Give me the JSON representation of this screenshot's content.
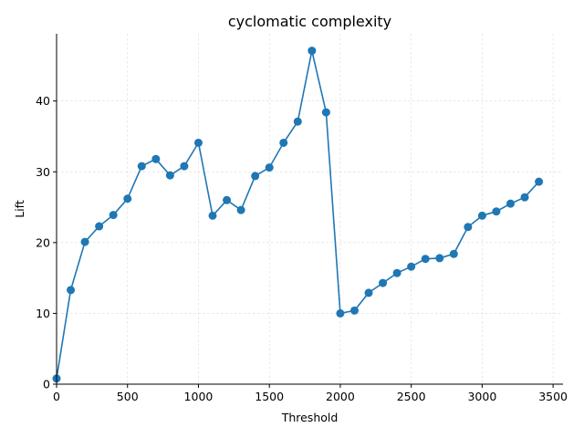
{
  "chart_data": {
    "type": "line",
    "title": "cyclomatic complexity",
    "xlabel": "Threshold",
    "ylabel": "Lift",
    "xlim": [
      0,
      3570
    ],
    "ylim": [
      0,
      49.5
    ],
    "xticks": [
      0,
      500,
      1000,
      1500,
      2000,
      2500,
      3000,
      3500
    ],
    "yticks": [
      0,
      10,
      20,
      30,
      40
    ],
    "grid": true,
    "color": "#1f77b4",
    "series": [
      {
        "x": [
          0,
          100,
          200,
          300,
          400,
          500,
          600,
          700,
          800,
          900,
          1000,
          1100,
          1200,
          1300,
          1400,
          1500,
          1600,
          1700,
          1800,
          1900,
          2000,
          2100,
          2200,
          2300,
          2400,
          2500,
          2600,
          2700,
          2800,
          2900,
          3000,
          3100,
          3200,
          3300,
          3400
        ],
        "values": [
          0.8,
          13.3,
          20.1,
          22.3,
          23.9,
          26.2,
          30.8,
          31.8,
          29.5,
          30.8,
          34.1,
          23.8,
          26.0,
          24.6,
          29.4,
          30.6,
          34.1,
          37.1,
          47.1,
          38.4,
          10.0,
          10.4,
          12.9,
          14.3,
          15.7,
          16.6,
          17.7,
          17.8,
          18.4,
          22.2,
          23.8,
          24.4,
          25.5,
          26.4,
          28.6
        ]
      }
    ]
  }
}
